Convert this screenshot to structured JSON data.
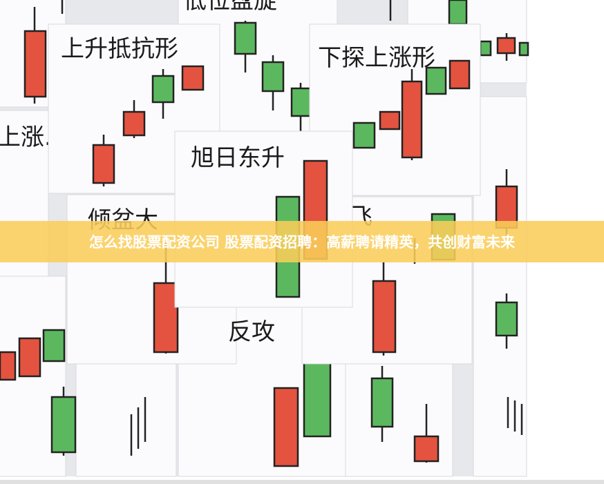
{
  "image": {
    "cards": [
      {
        "label": "低位盘旋"
      },
      {
        "label": "上升抵抗形"
      },
      {
        "label": "下探上涨形"
      },
      {
        "label": "上涨."
      },
      {
        "label": "旭日东升"
      },
      {
        "label": "倾盆大"
      },
      {
        "label": "飞"
      },
      {
        "label": "反攻"
      }
    ]
  },
  "banner": {
    "title": "怎么找股票配资公司 股票配资招聘：高薪聘请精英，共创财富未来"
  }
}
